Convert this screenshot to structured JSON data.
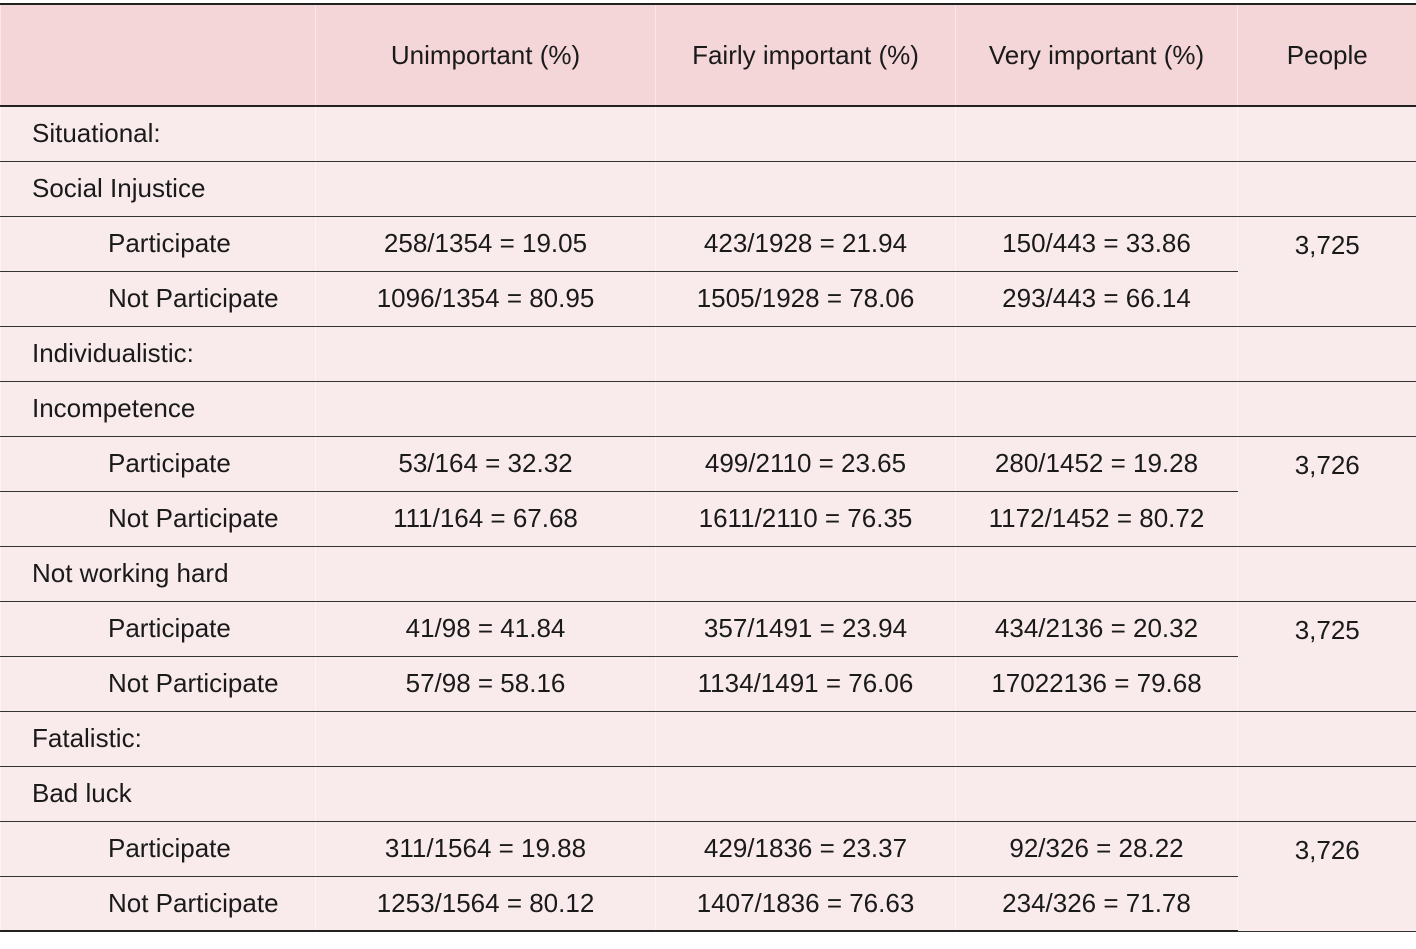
{
  "table": {
    "columns": [
      "Unimportant (%)",
      "Fairly important (%)",
      "Very important (%)",
      "People"
    ],
    "rows": [
      {
        "label": "Situational:"
      },
      {
        "label": "Social Injustice"
      },
      {
        "label": "Participate",
        "cells": [
          "258/1354 = 19.05",
          "423/1928 = 21.94",
          "150/443 = 33.86"
        ],
        "people": "3,725"
      },
      {
        "label": "Not Participate",
        "cells": [
          "1096/1354 = 80.95",
          "1505/1928 = 78.06",
          "293/443 = 66.14"
        ]
      },
      {
        "label": "Individualistic:"
      },
      {
        "label": "Incompetence"
      },
      {
        "label": "Participate",
        "cells": [
          "53/164 = 32.32",
          "499/2110 = 23.65",
          "280/1452 = 19.28"
        ],
        "people": "3,726"
      },
      {
        "label": "Not Participate",
        "cells": [
          "111/164 = 67.68",
          "1611/2110 = 76.35",
          "1172/1452 = 80.72"
        ]
      },
      {
        "label": "Not working hard"
      },
      {
        "label": "Participate",
        "cells": [
          "41/98 = 41.84",
          "357/1491 = 23.94",
          "434/2136 = 20.32"
        ],
        "people": "3,725"
      },
      {
        "label": "Not Participate",
        "cells": [
          "57/98 = 58.16",
          "1134/1491 = 76.06",
          "17022136 = 79.68"
        ]
      },
      {
        "label": "Fatalistic:"
      },
      {
        "label": "Bad luck"
      },
      {
        "label": "Participate",
        "cells": [
          "311/1564 = 19.88",
          "429/1836 = 23.37",
          "92/326 = 28.22"
        ],
        "people": "3,726"
      },
      {
        "label": "Not Participate",
        "cells": [
          "1253/1564 = 80.12",
          "1407/1836 = 76.63",
          "234/326 = 71.78"
        ]
      }
    ]
  }
}
